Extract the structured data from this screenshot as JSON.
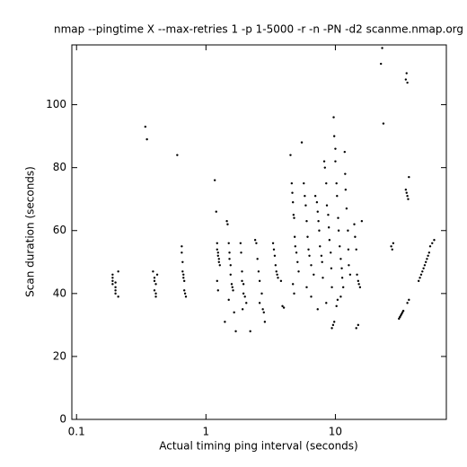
{
  "chart_data": {
    "type": "scatter",
    "title": "nmap --pingtime X --max-retries 1 -p 1-5000 -r -n -PN -d2 scanme.nmap.org",
    "x_label": "Actual timing ping interval (seconds)",
    "y_label": "Scan duration (seconds)",
    "x_scale": "log",
    "color": "#000000",
    "xlim": [
      0.092,
      72
    ],
    "ylim": [
      0,
      119
    ],
    "xticks": [
      0.1,
      1,
      10
    ],
    "yticks": [
      0,
      20,
      40,
      60,
      80,
      100
    ],
    "x": [
      0.19,
      0.19,
      0.19,
      0.2,
      0.2,
      0.19,
      0.2,
      0.21,
      0.21,
      0.2,
      0.39,
      0.4,
      0.4,
      0.41,
      0.4,
      0.41,
      0.41,
      0.42,
      0.34,
      0.35,
      0.6,
      0.65,
      0.65,
      0.66,
      0.66,
      0.67,
      0.67,
      0.68,
      0.68,
      0.69,
      0.7,
      1.17,
      1.2,
      1.22,
      1.22,
      1.24,
      1.24,
      1.26,
      1.26,
      1.28,
      1.22,
      1.24,
      1.45,
      1.47,
      1.5,
      1.52,
      1.52,
      1.55,
      1.55,
      1.58,
      1.6,
      1.62,
      1.4,
      1.65,
      1.7,
      1.5,
      1.85,
      1.87,
      1.9,
      1.9,
      1.95,
      1.95,
      2,
      2.05,
      2.2,
      1.92,
      2.4,
      2.45,
      2.5,
      2.55,
      2.6,
      2.7,
      2.75,
      2.8,
      2.85,
      2.6,
      3.3,
      3.35,
      3.4,
      3.45,
      3.5,
      3.55,
      3.6,
      3.8,
      3.9,
      4.0,
      4.5,
      4.6,
      4.65,
      4.7,
      4.75,
      4.8,
      4.85,
      4.9,
      5,
      5.1,
      5.2,
      4.7,
      4.8,
      5.5,
      5.7,
      5.8,
      5.9,
      6,
      6.1,
      6.2,
      6.3,
      6.5,
      6.8,
      6,
      6.5,
      7,
      7.2,
      7.3,
      7.4,
      7.5,
      7.6,
      7.8,
      7.9,
      8,
      7.3,
      8.2,
      8.3,
      8.5,
      8.6,
      8.8,
      8.9,
      9,
      9.2,
      9.3,
      9.4,
      8.5,
      9.7,
      9.8,
      10,
      10,
      10.2,
      10.3,
      10.5,
      10.6,
      10.8,
      11,
      11.2,
      11.3,
      11.5,
      9.4,
      9.6,
      9.8,
      10.2,
      10.4,
      11,
      11.8,
      11.9,
      12,
      12.2,
      12.5,
      12.6,
      12.7,
      13,
      14,
      14.2,
      14.5,
      14.7,
      15,
      15.2,
      15.5,
      14.5,
      15,
      16,
      22.5,
      23,
      23.5,
      27,
      27.5,
      28,
      31,
      31.5,
      32,
      32.5,
      33,
      33.5,
      35,
      35.5,
      36,
      35,
      35.5,
      36,
      36.5,
      37,
      36,
      37,
      44,
      45,
      46,
      47,
      48,
      49,
      50,
      51,
      52,
      53,
      54,
      56,
      58
    ],
    "values": [
      45,
      44,
      43,
      42,
      41,
      46,
      40,
      47,
      39,
      43.5,
      47,
      45,
      44,
      43,
      41,
      40,
      39,
      46,
      93,
      89,
      84,
      55,
      53,
      50,
      47,
      46,
      45,
      44,
      41,
      40,
      39,
      76,
      66,
      56,
      54,
      53,
      52,
      51,
      50,
      49,
      44,
      41,
      63,
      62,
      56,
      53,
      51,
      49,
      46,
      43,
      42,
      41,
      31,
      34,
      28,
      38,
      56,
      53,
      47,
      44,
      43,
      40,
      39,
      37,
      28,
      35,
      57,
      56,
      51,
      47,
      44,
      40,
      35,
      34,
      31,
      37,
      56,
      54,
      52,
      49,
      47,
      46,
      45,
      44,
      36,
      35.5,
      84,
      75,
      72,
      69,
      65,
      64,
      58,
      55,
      53,
      50,
      47,
      43,
      40,
      88,
      75,
      71,
      68,
      63,
      58,
      54,
      52,
      49,
      46,
      42,
      39,
      71,
      69,
      66,
      63,
      60,
      55,
      52,
      50,
      45,
      35,
      82,
      80,
      75,
      68,
      65,
      61,
      57,
      53,
      48,
      42,
      37,
      96,
      90,
      86,
      82,
      75,
      71,
      64,
      60,
      55,
      51,
      48,
      45,
      42,
      29,
      30,
      31,
      36,
      38,
      39,
      85,
      78,
      73,
      67,
      60,
      54,
      49,
      46,
      62,
      58,
      54,
      46,
      44,
      43,
      42,
      29,
      30,
      63,
      113,
      118,
      94,
      55,
      54,
      56,
      32,
      32.5,
      33,
      33.5,
      34,
      34.5,
      108,
      110,
      107,
      73,
      72,
      71,
      70,
      77,
      37,
      38,
      44,
      45,
      46,
      47,
      48,
      49,
      50,
      51,
      52,
      53,
      55,
      56,
      57
    ]
  }
}
